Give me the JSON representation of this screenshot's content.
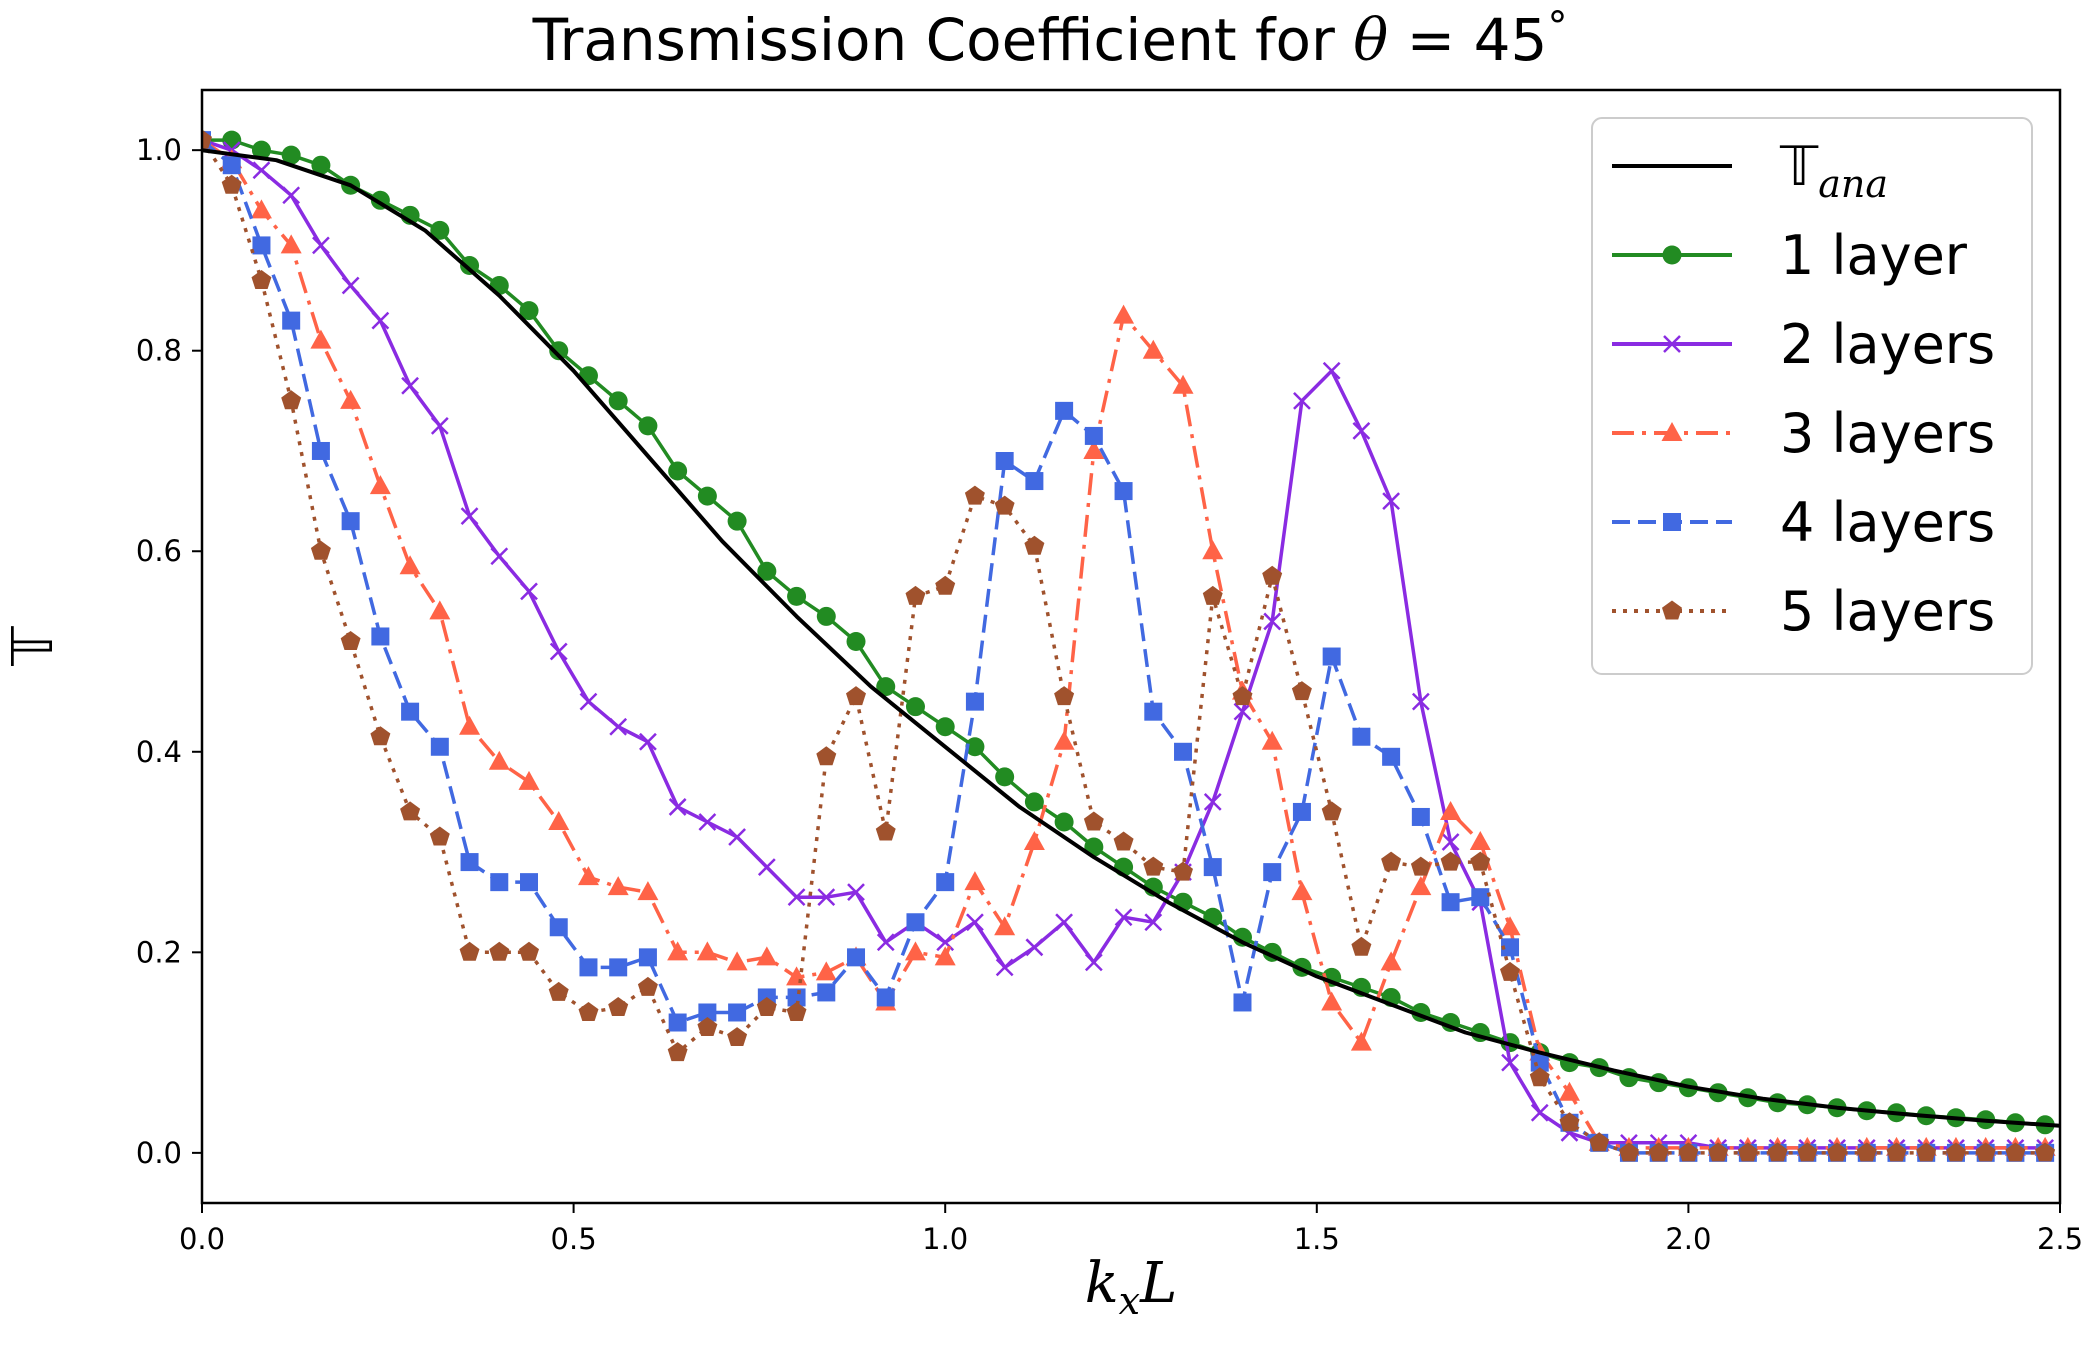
{
  "chart_data": {
    "type": "line",
    "title_prefix": "Transmission Coefficient for ",
    "title_symbol": "θ",
    "title_suffix": " = 45",
    "title_degree": "°",
    "xlabel_main": "k",
    "xlabel_sub": "x",
    "xlabel_end": "L",
    "ylabel": "𝕋",
    "xlim": [
      0,
      2.5
    ],
    "ylim": [
      -0.05,
      1.06
    ],
    "xticks": [
      "0.0",
      "0.5",
      "1.0",
      "1.5",
      "2.0",
      "2.5"
    ],
    "yticks": [
      "0.0",
      "0.2",
      "0.4",
      "0.6",
      "0.8",
      "1.0"
    ],
    "legend_position": "top-right",
    "series": [
      {
        "name": "𝕋",
        "name_sub": "ana",
        "color": "#000000",
        "line": "solid",
        "marker": "none",
        "x": [
          0,
          0.1,
          0.2,
          0.3,
          0.4,
          0.5,
          0.6,
          0.7,
          0.8,
          0.9,
          1.0,
          1.1,
          1.2,
          1.3,
          1.4,
          1.5,
          1.6,
          1.7,
          1.8,
          1.9,
          2.0,
          2.1,
          2.2,
          2.3,
          2.4,
          2.5
        ],
        "y": [
          1.0,
          0.99,
          0.965,
          0.92,
          0.855,
          0.78,
          0.695,
          0.61,
          0.535,
          0.465,
          0.405,
          0.345,
          0.295,
          0.25,
          0.21,
          0.176,
          0.148,
          0.12,
          0.1,
          0.082,
          0.066,
          0.054,
          0.045,
          0.038,
          0.032,
          0.027
        ]
      },
      {
        "name": "1 layer",
        "color": "#228b22",
        "line": "solid",
        "marker": "circle",
        "x": [
          0.0,
          0.04,
          0.08,
          0.12,
          0.16,
          0.2,
          0.24,
          0.28,
          0.32,
          0.36,
          0.4,
          0.44,
          0.48,
          0.52,
          0.56,
          0.6,
          0.64,
          0.68,
          0.72,
          0.76,
          0.8,
          0.84,
          0.88,
          0.92,
          0.96,
          1.0,
          1.04,
          1.08,
          1.12,
          1.16,
          1.2,
          1.24,
          1.28,
          1.32,
          1.36,
          1.4,
          1.44,
          1.48,
          1.52,
          1.56,
          1.6,
          1.64,
          1.68,
          1.72,
          1.76,
          1.8,
          1.84,
          1.88,
          1.92,
          1.96,
          2.0,
          2.04,
          2.08,
          2.12,
          2.16,
          2.2,
          2.24,
          2.28,
          2.32,
          2.36,
          2.4,
          2.44,
          2.48
        ],
        "y": [
          1.01,
          1.01,
          1.0,
          0.995,
          0.985,
          0.965,
          0.95,
          0.935,
          0.92,
          0.885,
          0.865,
          0.84,
          0.8,
          0.775,
          0.75,
          0.725,
          0.68,
          0.655,
          0.63,
          0.58,
          0.555,
          0.535,
          0.51,
          0.465,
          0.445,
          0.425,
          0.405,
          0.375,
          0.35,
          0.33,
          0.305,
          0.285,
          0.265,
          0.25,
          0.235,
          0.215,
          0.2,
          0.185,
          0.175,
          0.165,
          0.155,
          0.14,
          0.13,
          0.12,
          0.11,
          0.1,
          0.09,
          0.085,
          0.075,
          0.07,
          0.065,
          0.06,
          0.055,
          0.05,
          0.048,
          0.045,
          0.042,
          0.04,
          0.037,
          0.035,
          0.033,
          0.03,
          0.028
        ]
      },
      {
        "name": "2 layers",
        "color": "#8a2be2",
        "line": "solid",
        "marker": "x",
        "x": [
          0.0,
          0.04,
          0.08,
          0.12,
          0.16,
          0.2,
          0.24,
          0.28,
          0.32,
          0.36,
          0.4,
          0.44,
          0.48,
          0.52,
          0.56,
          0.6,
          0.64,
          0.68,
          0.72,
          0.76,
          0.8,
          0.84,
          0.88,
          0.92,
          0.96,
          1.0,
          1.04,
          1.08,
          1.12,
          1.16,
          1.2,
          1.24,
          1.28,
          1.32,
          1.36,
          1.4,
          1.44,
          1.48,
          1.52,
          1.56,
          1.6,
          1.64,
          1.68,
          1.72,
          1.76,
          1.8,
          1.84,
          1.88,
          1.92,
          1.96,
          2.0,
          2.04,
          2.08,
          2.12,
          2.16,
          2.2,
          2.24,
          2.28,
          2.32,
          2.36,
          2.4,
          2.44,
          2.48
        ],
        "y": [
          1.01,
          1.0,
          0.98,
          0.955,
          0.905,
          0.865,
          0.83,
          0.765,
          0.725,
          0.635,
          0.595,
          0.56,
          0.5,
          0.45,
          0.425,
          0.41,
          0.345,
          0.33,
          0.315,
          0.285,
          0.255,
          0.255,
          0.26,
          0.21,
          0.23,
          0.21,
          0.23,
          0.185,
          0.205,
          0.23,
          0.19,
          0.235,
          0.23,
          0.28,
          0.35,
          0.44,
          0.53,
          0.75,
          0.78,
          0.72,
          0.65,
          0.45,
          0.31,
          0.25,
          0.09,
          0.04,
          0.02,
          0.01,
          0.01,
          0.01,
          0.01,
          0.005,
          0.005,
          0.005,
          0.005,
          0.005,
          0.005,
          0.005,
          0.005,
          0.005,
          0.005,
          0.005,
          0.005
        ]
      },
      {
        "name": "3 layers",
        "color": "#ff6347",
        "line": "dashdot",
        "marker": "triangle",
        "x": [
          0.0,
          0.04,
          0.08,
          0.12,
          0.16,
          0.2,
          0.24,
          0.28,
          0.32,
          0.36,
          0.4,
          0.44,
          0.48,
          0.52,
          0.56,
          0.6,
          0.64,
          0.68,
          0.72,
          0.76,
          0.8,
          0.84,
          0.88,
          0.92,
          0.96,
          1.0,
          1.04,
          1.08,
          1.12,
          1.16,
          1.2,
          1.24,
          1.28,
          1.32,
          1.36,
          1.4,
          1.44,
          1.48,
          1.52,
          1.56,
          1.6,
          1.64,
          1.68,
          1.72,
          1.76,
          1.8,
          1.84,
          1.88,
          1.92,
          1.96,
          2.0,
          2.04,
          2.08,
          2.12,
          2.16,
          2.2,
          2.24,
          2.28,
          2.32,
          2.36,
          2.4,
          2.44,
          2.48
        ],
        "y": [
          1.01,
          0.99,
          0.94,
          0.905,
          0.81,
          0.75,
          0.665,
          0.585,
          0.54,
          0.425,
          0.39,
          0.37,
          0.33,
          0.275,
          0.265,
          0.26,
          0.2,
          0.2,
          0.19,
          0.195,
          0.175,
          0.18,
          0.195,
          0.15,
          0.2,
          0.195,
          0.27,
          0.225,
          0.31,
          0.41,
          0.7,
          0.835,
          0.8,
          0.765,
          0.6,
          0.46,
          0.41,
          0.26,
          0.15,
          0.11,
          0.19,
          0.265,
          0.34,
          0.31,
          0.225,
          0.1,
          0.06,
          0.01,
          0.005,
          0.005,
          0.005,
          0.005,
          0.005,
          0.005,
          0.005,
          0.005,
          0.005,
          0.005,
          0.005,
          0.005,
          0.005,
          0.005,
          0.005
        ]
      },
      {
        "name": "4 layers",
        "color": "#4169e1",
        "line": "dashed",
        "marker": "square",
        "x": [
          0.0,
          0.04,
          0.08,
          0.12,
          0.16,
          0.2,
          0.24,
          0.28,
          0.32,
          0.36,
          0.4,
          0.44,
          0.48,
          0.52,
          0.56,
          0.6,
          0.64,
          0.68,
          0.72,
          0.76,
          0.8,
          0.84,
          0.88,
          0.92,
          0.96,
          1.0,
          1.04,
          1.08,
          1.12,
          1.16,
          1.2,
          1.24,
          1.28,
          1.32,
          1.36,
          1.4,
          1.44,
          1.48,
          1.52,
          1.56,
          1.6,
          1.64,
          1.68,
          1.72,
          1.76,
          1.8,
          1.84,
          1.88,
          1.92,
          1.96,
          2.0,
          2.04,
          2.08,
          2.12,
          2.16,
          2.2,
          2.24,
          2.28,
          2.32,
          2.36,
          2.4,
          2.44,
          2.48
        ],
        "y": [
          1.01,
          0.985,
          0.905,
          0.83,
          0.7,
          0.63,
          0.515,
          0.44,
          0.405,
          0.29,
          0.27,
          0.27,
          0.225,
          0.185,
          0.185,
          0.195,
          0.13,
          0.14,
          0.14,
          0.155,
          0.155,
          0.16,
          0.195,
          0.155,
          0.23,
          0.27,
          0.45,
          0.69,
          0.67,
          0.74,
          0.715,
          0.66,
          0.44,
          0.4,
          0.285,
          0.15,
          0.28,
          0.34,
          0.495,
          0.415,
          0.395,
          0.335,
          0.25,
          0.255,
          0.205,
          0.09,
          0.03,
          0.01,
          0.0,
          0.0,
          0.0,
          0.0,
          0.0,
          0.0,
          0.0,
          0.0,
          0.0,
          0.0,
          0.0,
          0.0,
          0.0,
          0.0,
          0.0
        ]
      },
      {
        "name": "5 layers",
        "color": "#a0522d",
        "line": "dotted",
        "marker": "pentagon",
        "x": [
          0.0,
          0.04,
          0.08,
          0.12,
          0.16,
          0.2,
          0.24,
          0.28,
          0.32,
          0.36,
          0.4,
          0.44,
          0.48,
          0.52,
          0.56,
          0.6,
          0.64,
          0.68,
          0.72,
          0.76,
          0.8,
          0.84,
          0.88,
          0.92,
          0.96,
          1.0,
          1.04,
          1.08,
          1.12,
          1.16,
          1.2,
          1.24,
          1.28,
          1.32,
          1.36,
          1.4,
          1.44,
          1.48,
          1.52,
          1.56,
          1.6,
          1.64,
          1.68,
          1.72,
          1.76,
          1.8,
          1.84,
          1.88,
          1.92,
          1.96,
          2.0,
          2.04,
          2.08,
          2.12,
          2.16,
          2.2,
          2.24,
          2.28,
          2.32,
          2.36,
          2.4,
          2.44,
          2.48
        ],
        "y": [
          1.01,
          0.965,
          0.87,
          0.75,
          0.6,
          0.51,
          0.415,
          0.34,
          0.315,
          0.2,
          0.2,
          0.2,
          0.16,
          0.14,
          0.145,
          0.165,
          0.1,
          0.125,
          0.115,
          0.145,
          0.14,
          0.395,
          0.455,
          0.32,
          0.555,
          0.565,
          0.655,
          0.645,
          0.605,
          0.455,
          0.33,
          0.31,
          0.285,
          0.28,
          0.555,
          0.455,
          0.575,
          0.46,
          0.34,
          0.205,
          0.29,
          0.285,
          0.29,
          0.29,
          0.18,
          0.075,
          0.03,
          0.01,
          0.0,
          0.0,
          0.0,
          0.0,
          0.0,
          0.0,
          0.0,
          0.0,
          0.0,
          0.0,
          0.0,
          0.0,
          0.0,
          0.0,
          0.0
        ]
      }
    ]
  }
}
